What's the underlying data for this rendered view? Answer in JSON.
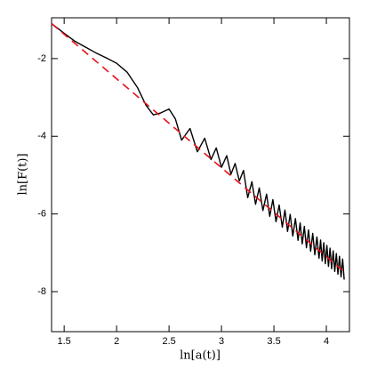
{
  "chart_data": {
    "type": "line",
    "x_label": "ln[a(t)]",
    "y_label": "ln[F(t)]",
    "xlim": [
      1.38,
      4.22
    ],
    "ylim": [
      -9.03,
      -0.95
    ],
    "xticks": [
      1.5,
      2,
      2.5,
      3,
      3.5,
      4
    ],
    "yticks": [
      -2,
      -4,
      -6,
      -8
    ],
    "series": [
      {
        "color": "#000000",
        "dashed": false,
        "x": [
          1.38,
          1.5,
          1.6,
          1.7,
          1.8,
          1.9,
          2.0,
          2.1,
          2.2,
          2.28,
          2.35,
          2.42,
          2.5,
          2.56,
          2.62,
          2.7,
          2.77,
          2.84,
          2.9,
          2.95,
          3.0,
          3.05,
          3.09,
          3.13,
          3.17,
          3.21,
          3.25,
          3.29,
          3.325,
          3.36,
          3.395,
          3.43,
          3.46,
          3.49,
          3.52,
          3.55,
          3.58,
          3.605,
          3.63,
          3.655,
          3.68,
          3.705,
          3.73,
          3.75,
          3.77,
          3.79,
          3.81,
          3.83,
          3.85,
          3.87,
          3.89,
          3.91,
          3.93,
          3.945,
          3.96,
          3.975,
          3.99,
          4.005,
          4.02,
          4.035,
          4.05,
          4.065,
          4.08,
          4.095,
          4.11,
          4.125,
          4.14,
          4.155,
          4.17
        ],
        "values": [
          -1.1,
          -1.35,
          -1.55,
          -1.7,
          -1.85,
          -1.98,
          -2.12,
          -2.35,
          -2.75,
          -3.2,
          -3.45,
          -3.4,
          -3.3,
          -3.55,
          -4.1,
          -3.8,
          -4.4,
          -4.05,
          -4.6,
          -4.3,
          -4.8,
          -4.5,
          -4.98,
          -4.7,
          -5.15,
          -4.88,
          -5.58,
          -5.17,
          -5.75,
          -5.33,
          -5.91,
          -5.49,
          -6.06,
          -5.63,
          -6.2,
          -5.77,
          -6.34,
          -5.9,
          -6.45,
          -6.01,
          -6.57,
          -6.12,
          -6.68,
          -6.23,
          -6.77,
          -6.32,
          -6.87,
          -6.41,
          -6.96,
          -6.5,
          -7.05,
          -6.59,
          -7.14,
          -6.67,
          -7.21,
          -6.74,
          -7.28,
          -6.81,
          -7.35,
          -6.88,
          -7.41,
          -6.95,
          -7.48,
          -7.02,
          -7.55,
          -7.09,
          -7.62,
          -7.16,
          -7.69
        ]
      },
      {
        "color": "#e8101a",
        "dashed": true,
        "x": [
          1.38,
          4.17
        ],
        "values": [
          -1.1,
          -7.49
        ]
      }
    ]
  }
}
